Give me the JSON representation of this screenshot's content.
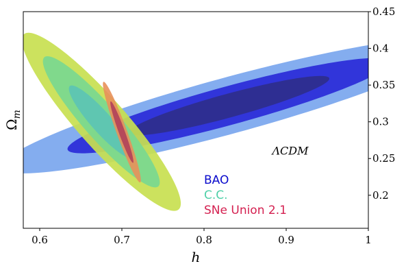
{
  "chart_data": {
    "type": "contour",
    "xlabel": "h",
    "ylabel": "Ω_m",
    "xlim": [
      0.58,
      1.0
    ],
    "ylim": [
      0.155,
      0.45
    ],
    "x_ticks": [
      0.6,
      0.7,
      0.8,
      0.9,
      1.0
    ],
    "x_tick_labels": [
      "0.6",
      "0.7",
      "0.8",
      "0.9",
      "1"
    ],
    "y_ticks": [
      0.2,
      0.25,
      0.3,
      0.35,
      0.4,
      0.45
    ],
    "y_tick_labels": [
      "0.2",
      "0.25",
      "0.3",
      "0.35",
      "0.4",
      "0.45"
    ],
    "y_axis_side": "right",
    "annotation": "ΛCDM",
    "legend_placement": "bottom-center",
    "series": [
      {
        "name": "BAO",
        "color": "#0a0acc",
        "center": [
          0.83,
          0.322
        ],
        "regions": [
          {
            "level": 3,
            "fill": "#7aa6ee",
            "semi_axes": [
              0.29,
              0.038
            ],
            "angle_deg": 17
          },
          {
            "level": 2,
            "fill": "#2a2ad8",
            "semi_axes": [
              0.205,
              0.026
            ],
            "angle_deg": 17
          },
          {
            "level": 1,
            "fill": "#2e2e8c",
            "semi_axes": [
              0.128,
              0.016
            ],
            "angle_deg": 17
          }
        ]
      },
      {
        "name": "C.C.",
        "color": "#4fd0a8",
        "center": [
          0.675,
          0.3
        ],
        "regions": [
          {
            "level": 3,
            "fill": "#c8e050",
            "semi_axes": [
              0.152,
              0.031
            ],
            "angle_deg": -52
          },
          {
            "level": 2,
            "fill": "#7ad890",
            "semi_axes": [
              0.112,
              0.022
            ],
            "angle_deg": -52
          },
          {
            "level": 1,
            "fill": "#5cc4b4",
            "semi_axes": [
              0.062,
              0.013
            ],
            "angle_deg": -52
          }
        ]
      },
      {
        "name": "SNe Union 2.1",
        "color": "#d42050",
        "center": [
          0.7,
          0.286
        ],
        "regions": [
          {
            "level": 2,
            "fill": "#e8905a",
            "semi_axes": [
              0.072,
              0.0065
            ],
            "angle_deg": -72
          },
          {
            "level": 1,
            "fill": "#b0405a",
            "semi_axes": [
              0.044,
              0.0038
            ],
            "angle_deg": -72
          }
        ]
      }
    ]
  }
}
